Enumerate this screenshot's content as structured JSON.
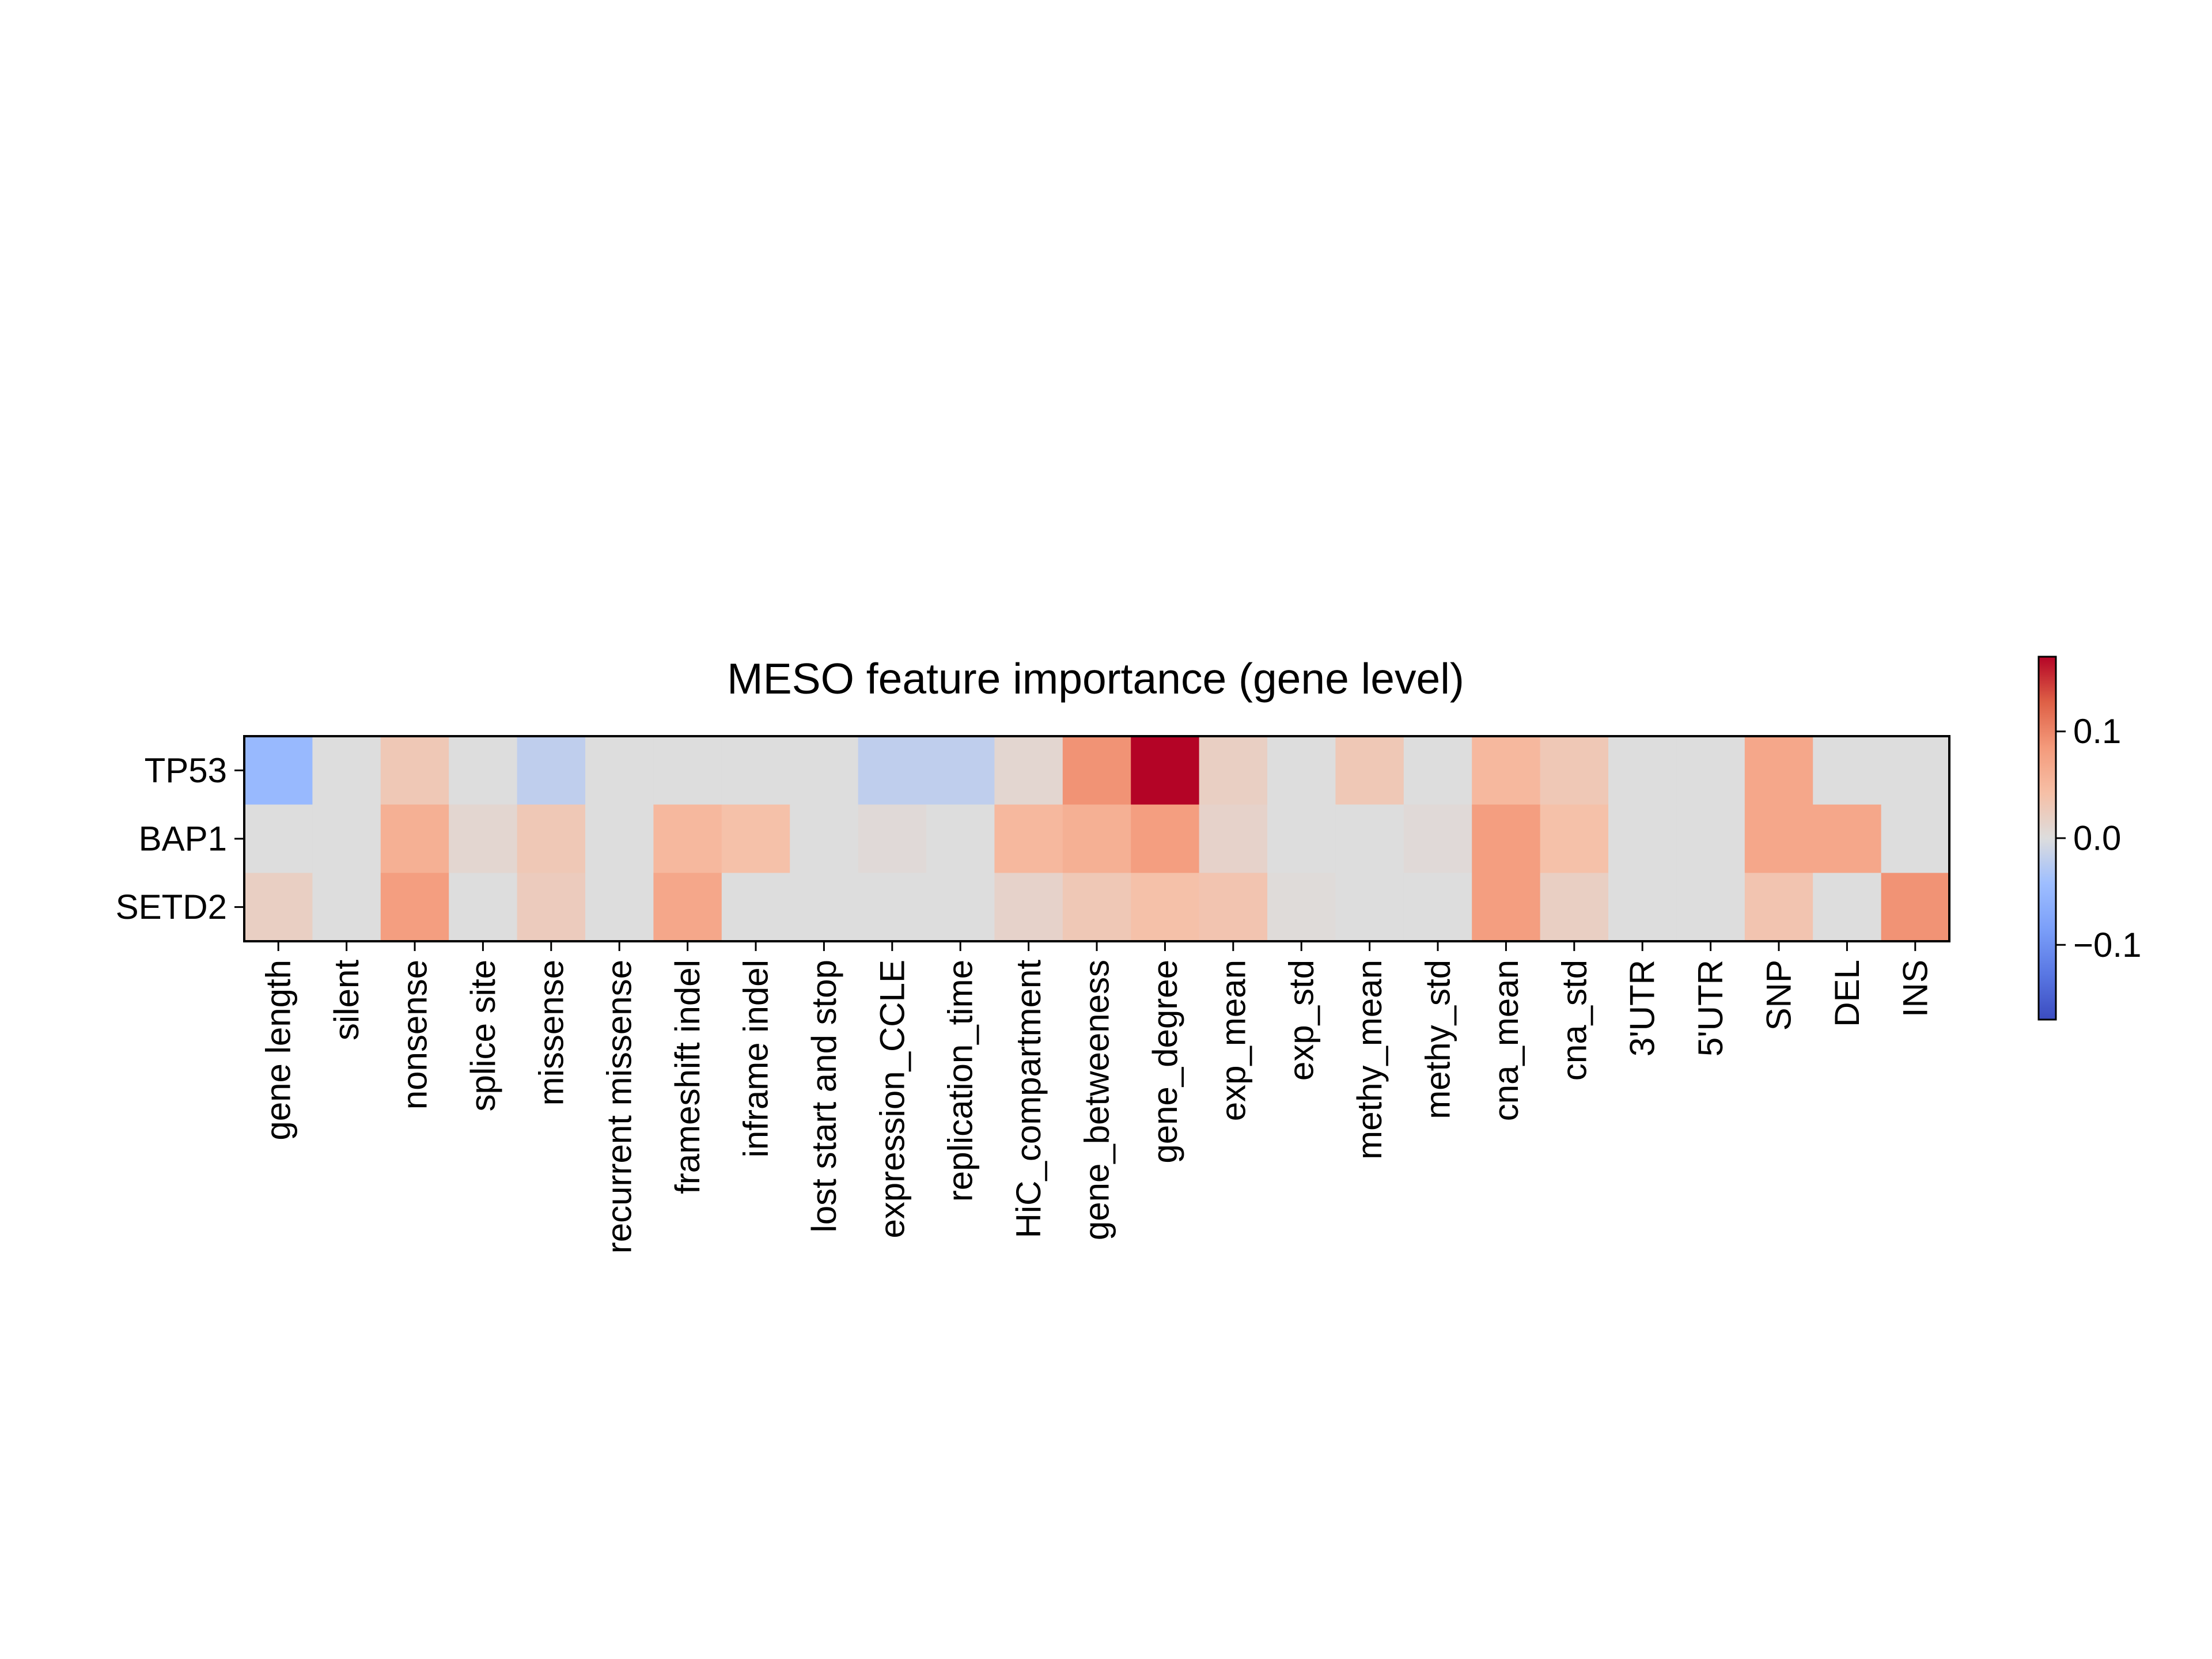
{
  "chart_data": {
    "type": "heatmap",
    "title": "MESO feature importance (gene level)",
    "xlabel": "",
    "ylabel": "",
    "rows": [
      "TP53",
      "BAP1",
      "SETD2"
    ],
    "columns": [
      "gene length",
      "silent",
      "nonsense",
      "splice site",
      "missense",
      "recurrent missense",
      "frameshift indel",
      "inframe indel",
      "lost start and stop",
      "expression_CCLE",
      "replication_time",
      "HiC_compartment",
      "gene_betweeness",
      "gene_degree",
      "exp_mean",
      "exp_std",
      "methy_mean",
      "methy_std",
      "cna_mean",
      "cna_std",
      "3'UTR",
      "5'UTR",
      "SNP",
      "DEL",
      "INS"
    ],
    "values": [
      [
        -0.05,
        0.0,
        0.03,
        0.0,
        -0.02,
        0.0,
        0.0,
        0.0,
        0.0,
        -0.02,
        -0.02,
        0.01,
        0.09,
        0.17,
        0.02,
        0.0,
        0.03,
        0.0,
        0.05,
        0.03,
        0.0,
        0.0,
        0.07,
        0.0,
        0.0
      ],
      [
        0.0,
        0.0,
        0.06,
        0.01,
        0.03,
        0.0,
        0.05,
        0.04,
        0.0,
        0.005,
        0.0,
        0.05,
        0.06,
        0.08,
        0.015,
        0.0,
        0.0,
        0.005,
        0.08,
        0.04,
        0.0,
        0.0,
        0.07,
        0.07,
        0.0
      ],
      [
        0.02,
        0.0,
        0.08,
        0.0,
        0.025,
        0.0,
        0.07,
        0.0,
        0.0,
        0.0,
        0.0,
        0.015,
        0.03,
        0.04,
        0.035,
        0.003,
        0.0,
        0.0,
        0.08,
        0.02,
        0.0,
        0.0,
        0.035,
        0.0,
        0.09
      ]
    ],
    "colorbar": {
      "colormap": "coolwarm",
      "vmin": -0.17,
      "vmax": 0.17,
      "ticks": [
        0.1,
        0.0,
        -0.1
      ],
      "tick_labels": [
        "0.1",
        "0.0",
        "−0.1"
      ]
    },
    "grid": false,
    "legend": "colorbar-right"
  }
}
